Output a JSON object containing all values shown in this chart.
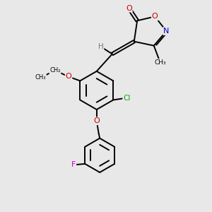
{
  "background_color": "#e8e8e8",
  "figsize": [
    3.0,
    3.0
  ],
  "dpi": 100,
  "colors": {
    "O": "#cc0000",
    "N": "#0000cc",
    "Cl": "#00aa00",
    "F": "#cc00cc",
    "H": "#777777",
    "C": "#000000",
    "bond": "#000000"
  },
  "xlim": [
    0,
    10
  ],
  "ylim": [
    0,
    10
  ]
}
